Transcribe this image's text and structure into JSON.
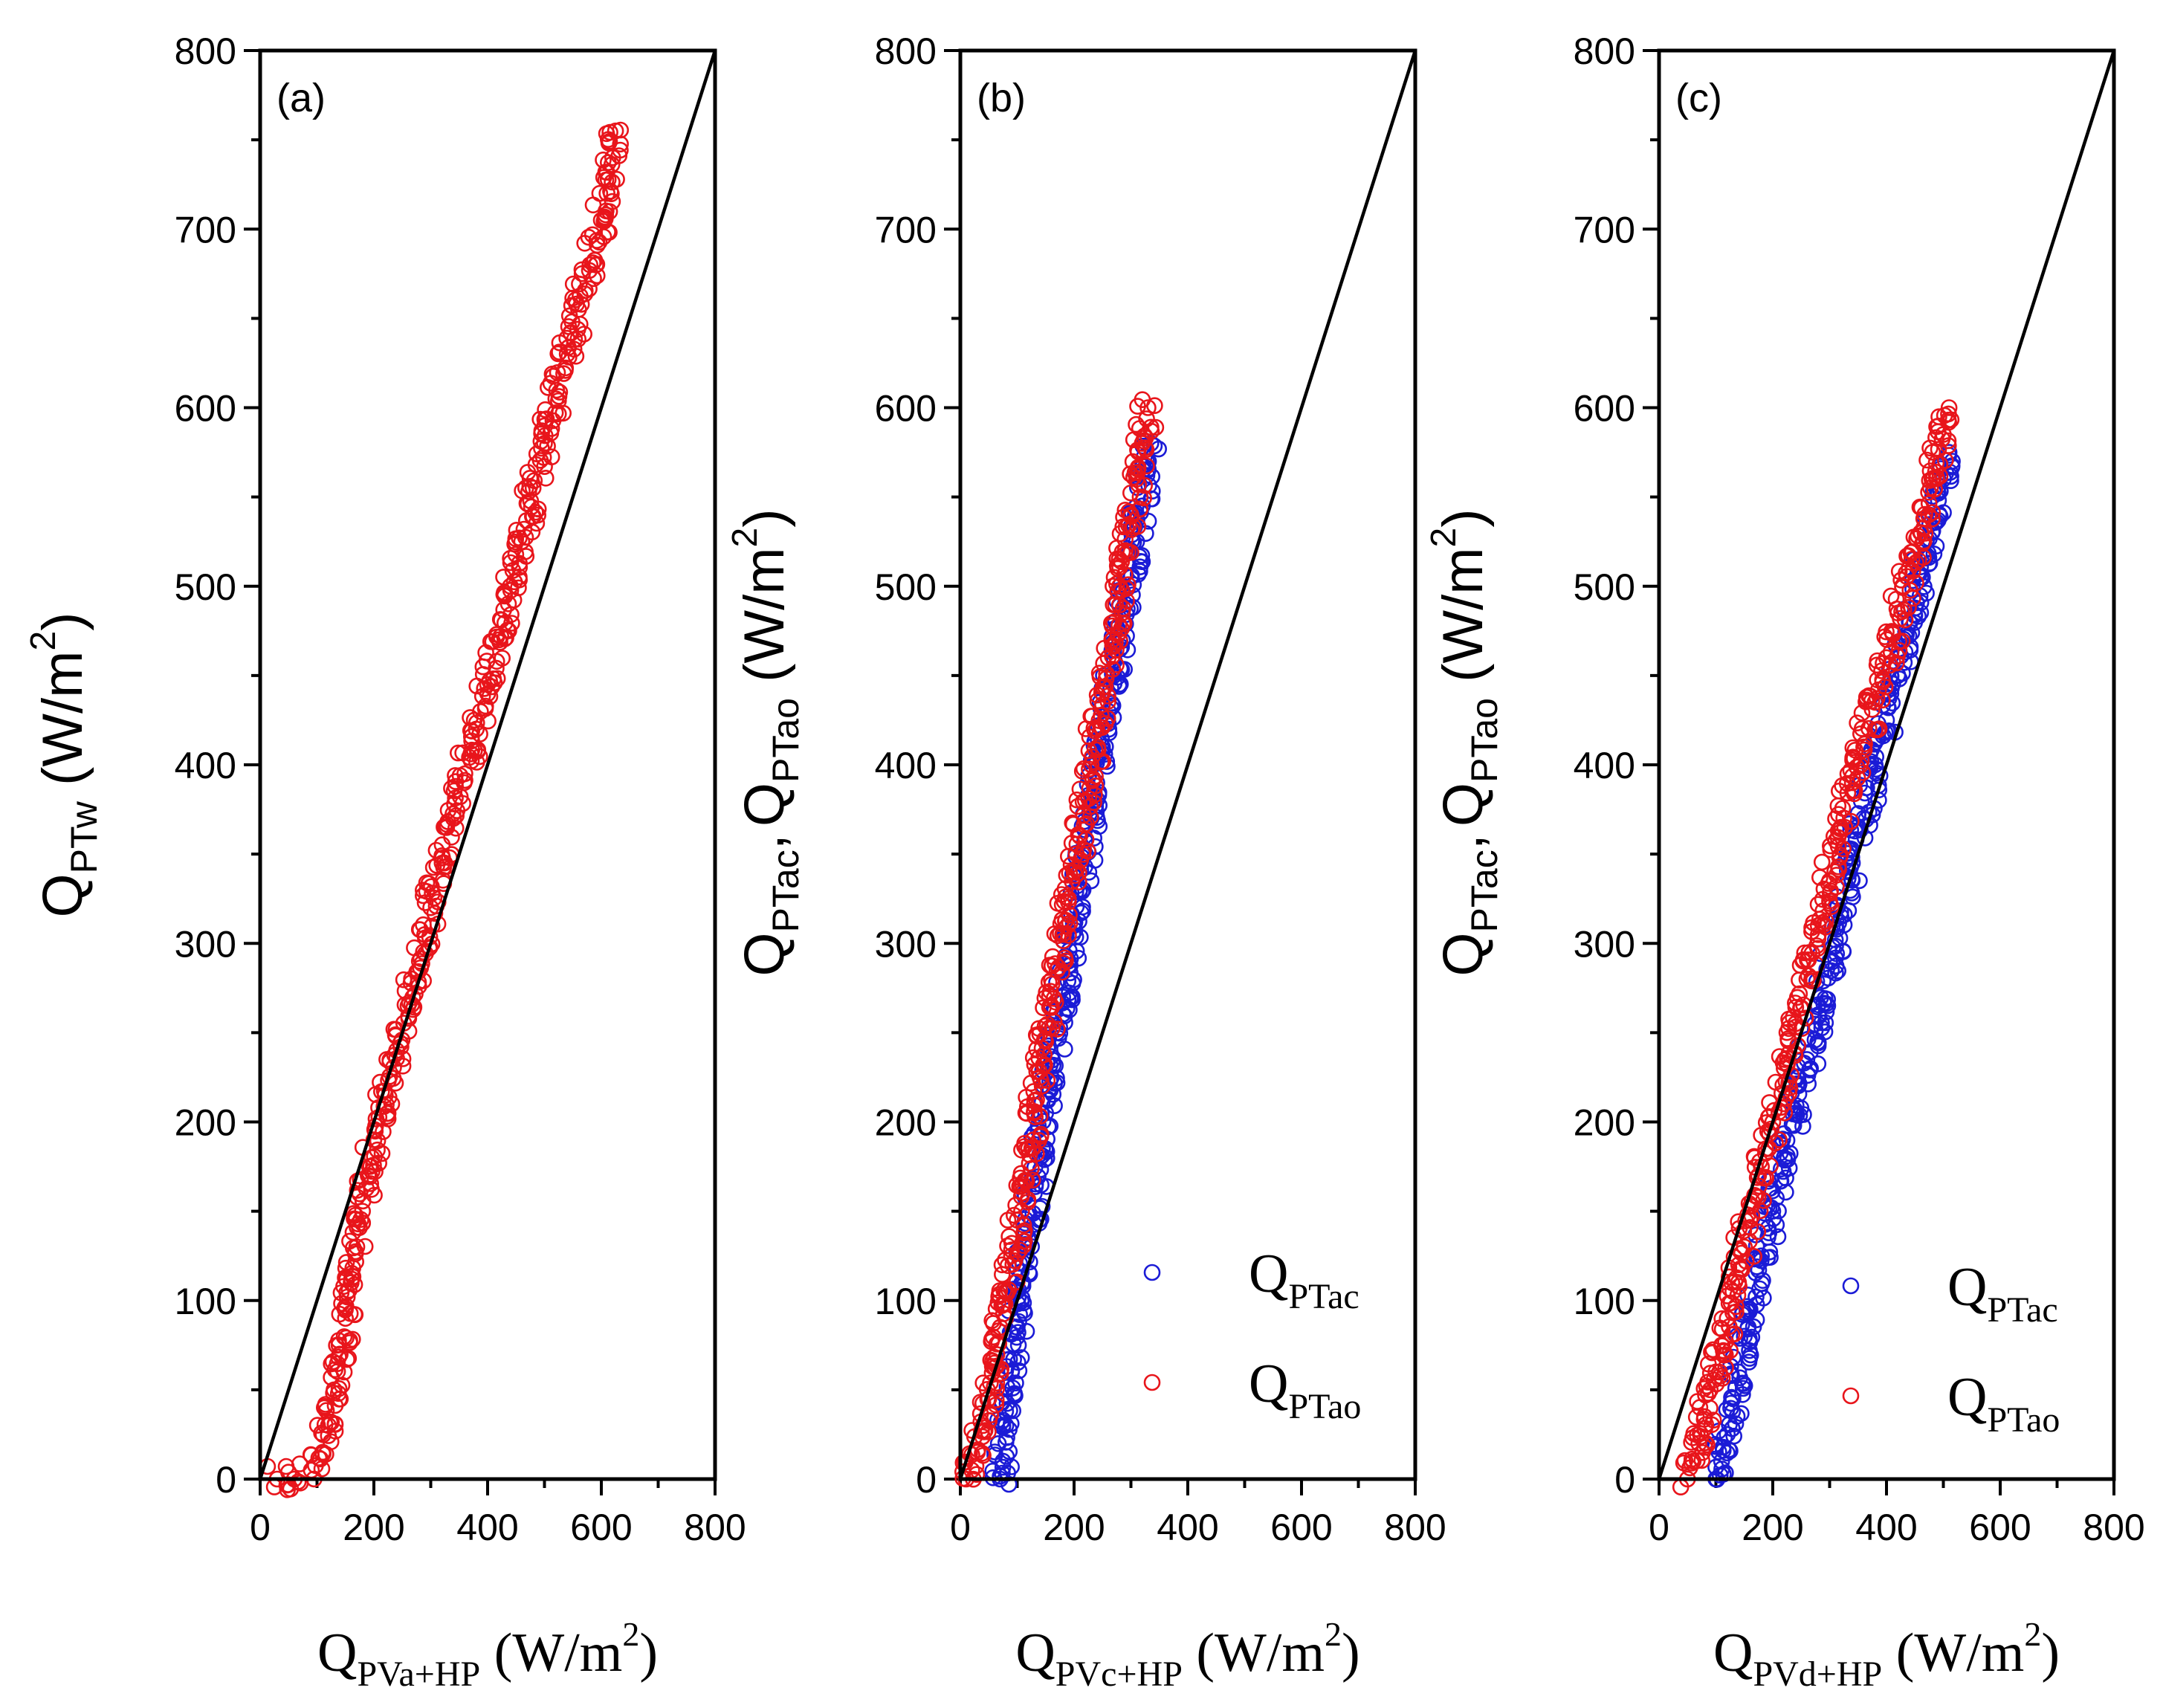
{
  "chart_data": [
    {
      "type": "scatter",
      "panel_label": "(a)",
      "xlabel": {
        "main": "Q",
        "sub": "PVa+HP",
        "unit": "(W/m",
        "sup": "2",
        "close": ")"
      },
      "ylabel": {
        "main": "Q",
        "sub": "PTw",
        "unit": "(W/m",
        "sup": "2",
        "close": ")"
      },
      "xlim": [
        0,
        800
      ],
      "ylim": [
        0,
        800
      ],
      "xticks": [
        "0",
        "200",
        "400",
        "600",
        "800"
      ],
      "yticks": [
        "0",
        "100",
        "200",
        "300",
        "400",
        "500",
        "600",
        "700",
        "800"
      ],
      "reference_line": {
        "x": [
          0,
          800
        ],
        "y": [
          0,
          800
        ]
      },
      "legend": null,
      "series": [
        {
          "color": "#e8151b",
          "x": [
            30,
            60,
            90,
            110,
            120,
            130,
            140,
            150,
            160,
            170,
            180,
            190,
            200,
            220,
            240,
            260,
            280,
            300,
            320,
            340,
            360,
            380,
            400,
            420,
            440,
            460,
            480,
            500,
            520,
            540,
            560,
            580,
            600,
            610,
            620,
            625
          ],
          "y": [
            0,
            0,
            5,
            15,
            30,
            50,
            70,
            90,
            110,
            130,
            150,
            170,
            190,
            215,
            240,
            265,
            290,
            320,
            345,
            370,
            395,
            420,
            445,
            470,
            500,
            525,
            555,
            580,
            605,
            630,
            655,
            680,
            705,
            720,
            740,
            755
          ]
        }
      ]
    },
    {
      "type": "scatter",
      "panel_label": "(b)",
      "xlabel": {
        "main": "Q",
        "sub": "PVc+HP",
        "unit": "(W/m",
        "sup": "2",
        "close": ")"
      },
      "ylabel": {
        "main": "Q",
        "sub1": "PTac",
        "sep": ",",
        "main2": "Q",
        "sub2": "PTao",
        "unit": "(W/m",
        "sup": "2",
        "close": ")"
      },
      "xlim": [
        0,
        800
      ],
      "ylim": [
        0,
        800
      ],
      "xticks": [
        "0",
        "200",
        "400",
        "600",
        "800"
      ],
      "yticks": [
        "0",
        "100",
        "200",
        "300",
        "400",
        "500",
        "600",
        "700",
        "800"
      ],
      "reference_line": {
        "x": [
          0,
          800
        ],
        "y": [
          0,
          800
        ]
      },
      "legend": {
        "placement": "bottom-right",
        "entries": [
          {
            "main": "Q",
            "sub": "PTac"
          },
          {
            "main": "Q",
            "sub": "PTao"
          }
        ]
      },
      "series": [
        {
          "legend_index": 0,
          "color": "#1b1bd6",
          "x": [
            70,
            75,
            80,
            90,
            100,
            110,
            120,
            130,
            140,
            150,
            160,
            170,
            180,
            190,
            200,
            210,
            220,
            230,
            240,
            250,
            260,
            270,
            280,
            290,
            300,
            310,
            320,
            330,
            335
          ],
          "y": [
            0,
            10,
            30,
            60,
            85,
            110,
            135,
            160,
            180,
            205,
            225,
            250,
            270,
            290,
            310,
            330,
            350,
            370,
            390,
            410,
            430,
            450,
            470,
            490,
            505,
            525,
            545,
            565,
            580
          ]
        },
        {
          "legend_index": 1,
          "color": "#e8151b",
          "x": [
            10,
            20,
            30,
            40,
            50,
            60,
            70,
            80,
            90,
            100,
            110,
            120,
            130,
            140,
            150,
            160,
            170,
            180,
            190,
            200,
            210,
            220,
            230,
            240,
            250,
            260,
            270,
            280,
            290,
            300,
            310,
            320,
            330
          ],
          "y": [
            0,
            5,
            15,
            30,
            45,
            65,
            85,
            105,
            125,
            145,
            165,
            185,
            205,
            225,
            245,
            265,
            285,
            305,
            325,
            340,
            360,
            380,
            400,
            420,
            440,
            460,
            480,
            500,
            520,
            540,
            560,
            580,
            600
          ]
        }
      ]
    },
    {
      "type": "scatter",
      "panel_label": "(c)",
      "xlabel": {
        "main": "Q",
        "sub": "PVd+HP",
        "unit": "(W/m",
        "sup": "2",
        "close": ")"
      },
      "ylabel": {
        "main": "Q",
        "sub1": "PTac",
        "sep": ",",
        "main2": "Q",
        "sub2": "PTao",
        "unit": "(W/m",
        "sup": "2",
        "close": ")"
      },
      "xlim": [
        0,
        800
      ],
      "ylim": [
        0,
        800
      ],
      "xticks": [
        "0",
        "200",
        "400",
        "600",
        "800"
      ],
      "yticks": [
        "0",
        "100",
        "200",
        "300",
        "400",
        "500",
        "600",
        "700",
        "800"
      ],
      "reference_line": {
        "x": [
          0,
          800
        ],
        "y": [
          0,
          800
        ]
      },
      "legend": {
        "placement": "bottom-right",
        "entries": [
          {
            "main": "Q",
            "sub": "PTac"
          },
          {
            "main": "Q",
            "sub": "PTao"
          }
        ]
      },
      "series": [
        {
          "legend_index": 0,
          "color": "#1b1bd6",
          "x": [
            100,
            110,
            120,
            130,
            140,
            150,
            160,
            180,
            200,
            220,
            240,
            260,
            280,
            300,
            320,
            340,
            360,
            380,
            400,
            420,
            440,
            460,
            480,
            500,
            510
          ],
          "y": [
            0,
            10,
            25,
            45,
            60,
            80,
            95,
            125,
            150,
            180,
            205,
            235,
            260,
            290,
            315,
            345,
            370,
            400,
            425,
            450,
            480,
            505,
            530,
            560,
            575
          ]
        },
        {
          "legend_index": 1,
          "color": "#e8151b",
          "x": [
            50,
            60,
            70,
            80,
            90,
            100,
            110,
            120,
            130,
            140,
            150,
            160,
            180,
            200,
            220,
            240,
            260,
            280,
            300,
            320,
            340,
            360,
            380,
            400,
            420,
            440,
            460,
            480,
            500,
            510
          ],
          "y": [
            0,
            10,
            20,
            35,
            50,
            60,
            75,
            90,
            105,
            120,
            130,
            145,
            175,
            200,
            230,
            255,
            280,
            310,
            335,
            365,
            390,
            410,
            435,
            460,
            485,
            510,
            530,
            560,
            585,
            600
          ]
        }
      ]
    }
  ]
}
